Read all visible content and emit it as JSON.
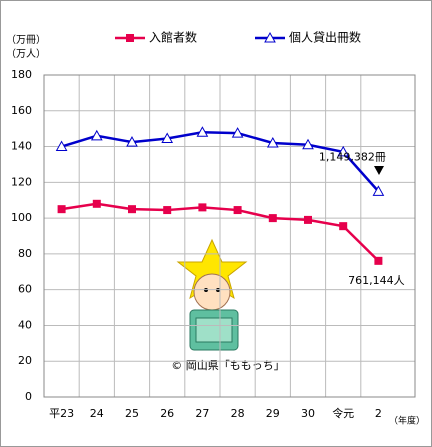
{
  "chart_data": {
    "type": "line",
    "y_unit_labels": [
      "（万冊）",
      "（万人）"
    ],
    "x_label": "（年度）",
    "categories": [
      "平23",
      "24",
      "25",
      "26",
      "27",
      "28",
      "29",
      "30",
      "令元",
      "2"
    ],
    "series": [
      {
        "name": "入館者数",
        "color": "#e6004c",
        "marker": "square",
        "values": [
          105,
          108,
          105,
          104.5,
          106,
          104.5,
          100,
          99,
          95.5,
          76.1144
        ],
        "value_labels": [
          null,
          null,
          null,
          null,
          null,
          null,
          null,
          null,
          null,
          "761,144人"
        ]
      },
      {
        "name": "個人貸出冊数",
        "color": "#0000cc",
        "marker": "triangle",
        "values": [
          140,
          146,
          142.5,
          144.5,
          148,
          147.5,
          142,
          141,
          137,
          114.9382
        ],
        "value_labels": [
          null,
          null,
          null,
          null,
          null,
          null,
          null,
          null,
          null,
          "1,149,382冊"
        ]
      }
    ],
    "ylim": [
      0,
      180
    ],
    "yticks": [
      0,
      20,
      40,
      60,
      80,
      100,
      120,
      140,
      160,
      180
    ],
    "grid": true,
    "annotation": "© 岡山県「ももっち」"
  }
}
